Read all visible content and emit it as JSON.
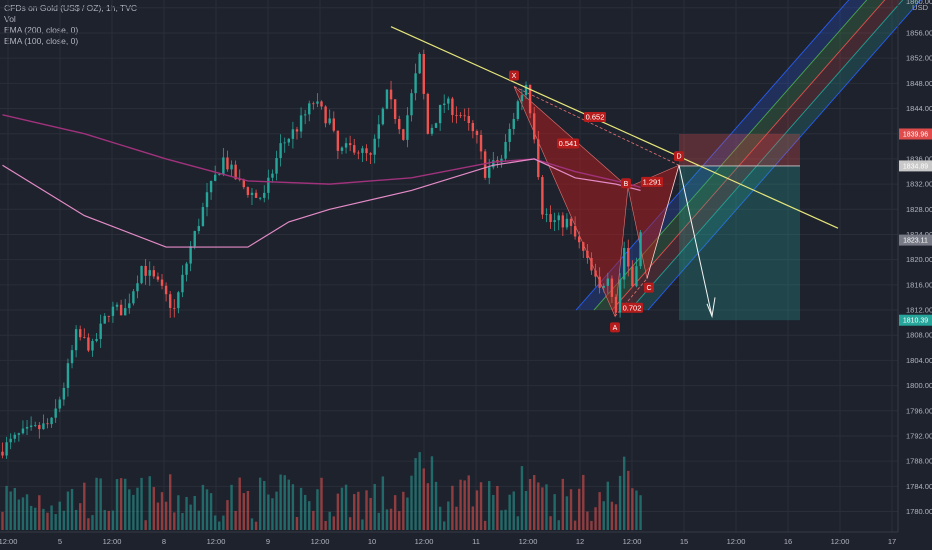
{
  "header": {
    "symbol_line": "CFDs on Gold (US$ / OZ), 1h, TVC",
    "vol_label": "Vol",
    "ema1_label": "EMA (200, close, 0)",
    "ema2_label": "EMA (100, close, 0)"
  },
  "chart_data": {
    "type": "candlestick",
    "title": "",
    "currency": "USD",
    "y_ticks": [
      1780,
      1784,
      1788,
      1792,
      1796,
      1800,
      1804,
      1808,
      1812,
      1816,
      1820,
      1824,
      1828,
      1832,
      1836,
      1840,
      1844,
      1848,
      1852,
      1856,
      1860
    ],
    "ylim": [
      1778.5,
      1861
    ],
    "x_ticks": [
      "12:00",
      "5",
      "12:00",
      "8",
      "12:00",
      "9",
      "12:00",
      "10",
      "12:00",
      "11",
      "12:00",
      "12",
      "12:00",
      "15",
      "12:00",
      "16",
      "12:00",
      "17"
    ],
    "price_tags": [
      {
        "value": "1839.96",
        "color": "#e04b4b"
      },
      {
        "value": "1834.89",
        "color": "#c9c9c9"
      },
      {
        "value": "1823.11",
        "color": "#787b86"
      },
      {
        "value": "1810.39",
        "color": "#26a69a"
      }
    ],
    "pattern_points": [
      "X",
      "A",
      "B",
      "C",
      "D"
    ],
    "pattern_ratios": [
      "0.652",
      "0.541",
      "1.291",
      "0.702"
    ],
    "colors": {
      "up": "#26a69a",
      "down": "#ef5350",
      "ema200": "#a0327c",
      "ema100": "#e48bc7",
      "trendline": "#e6e67a",
      "pattern_fill": "#b71c1c",
      "channel": "#2962ff"
    }
  }
}
